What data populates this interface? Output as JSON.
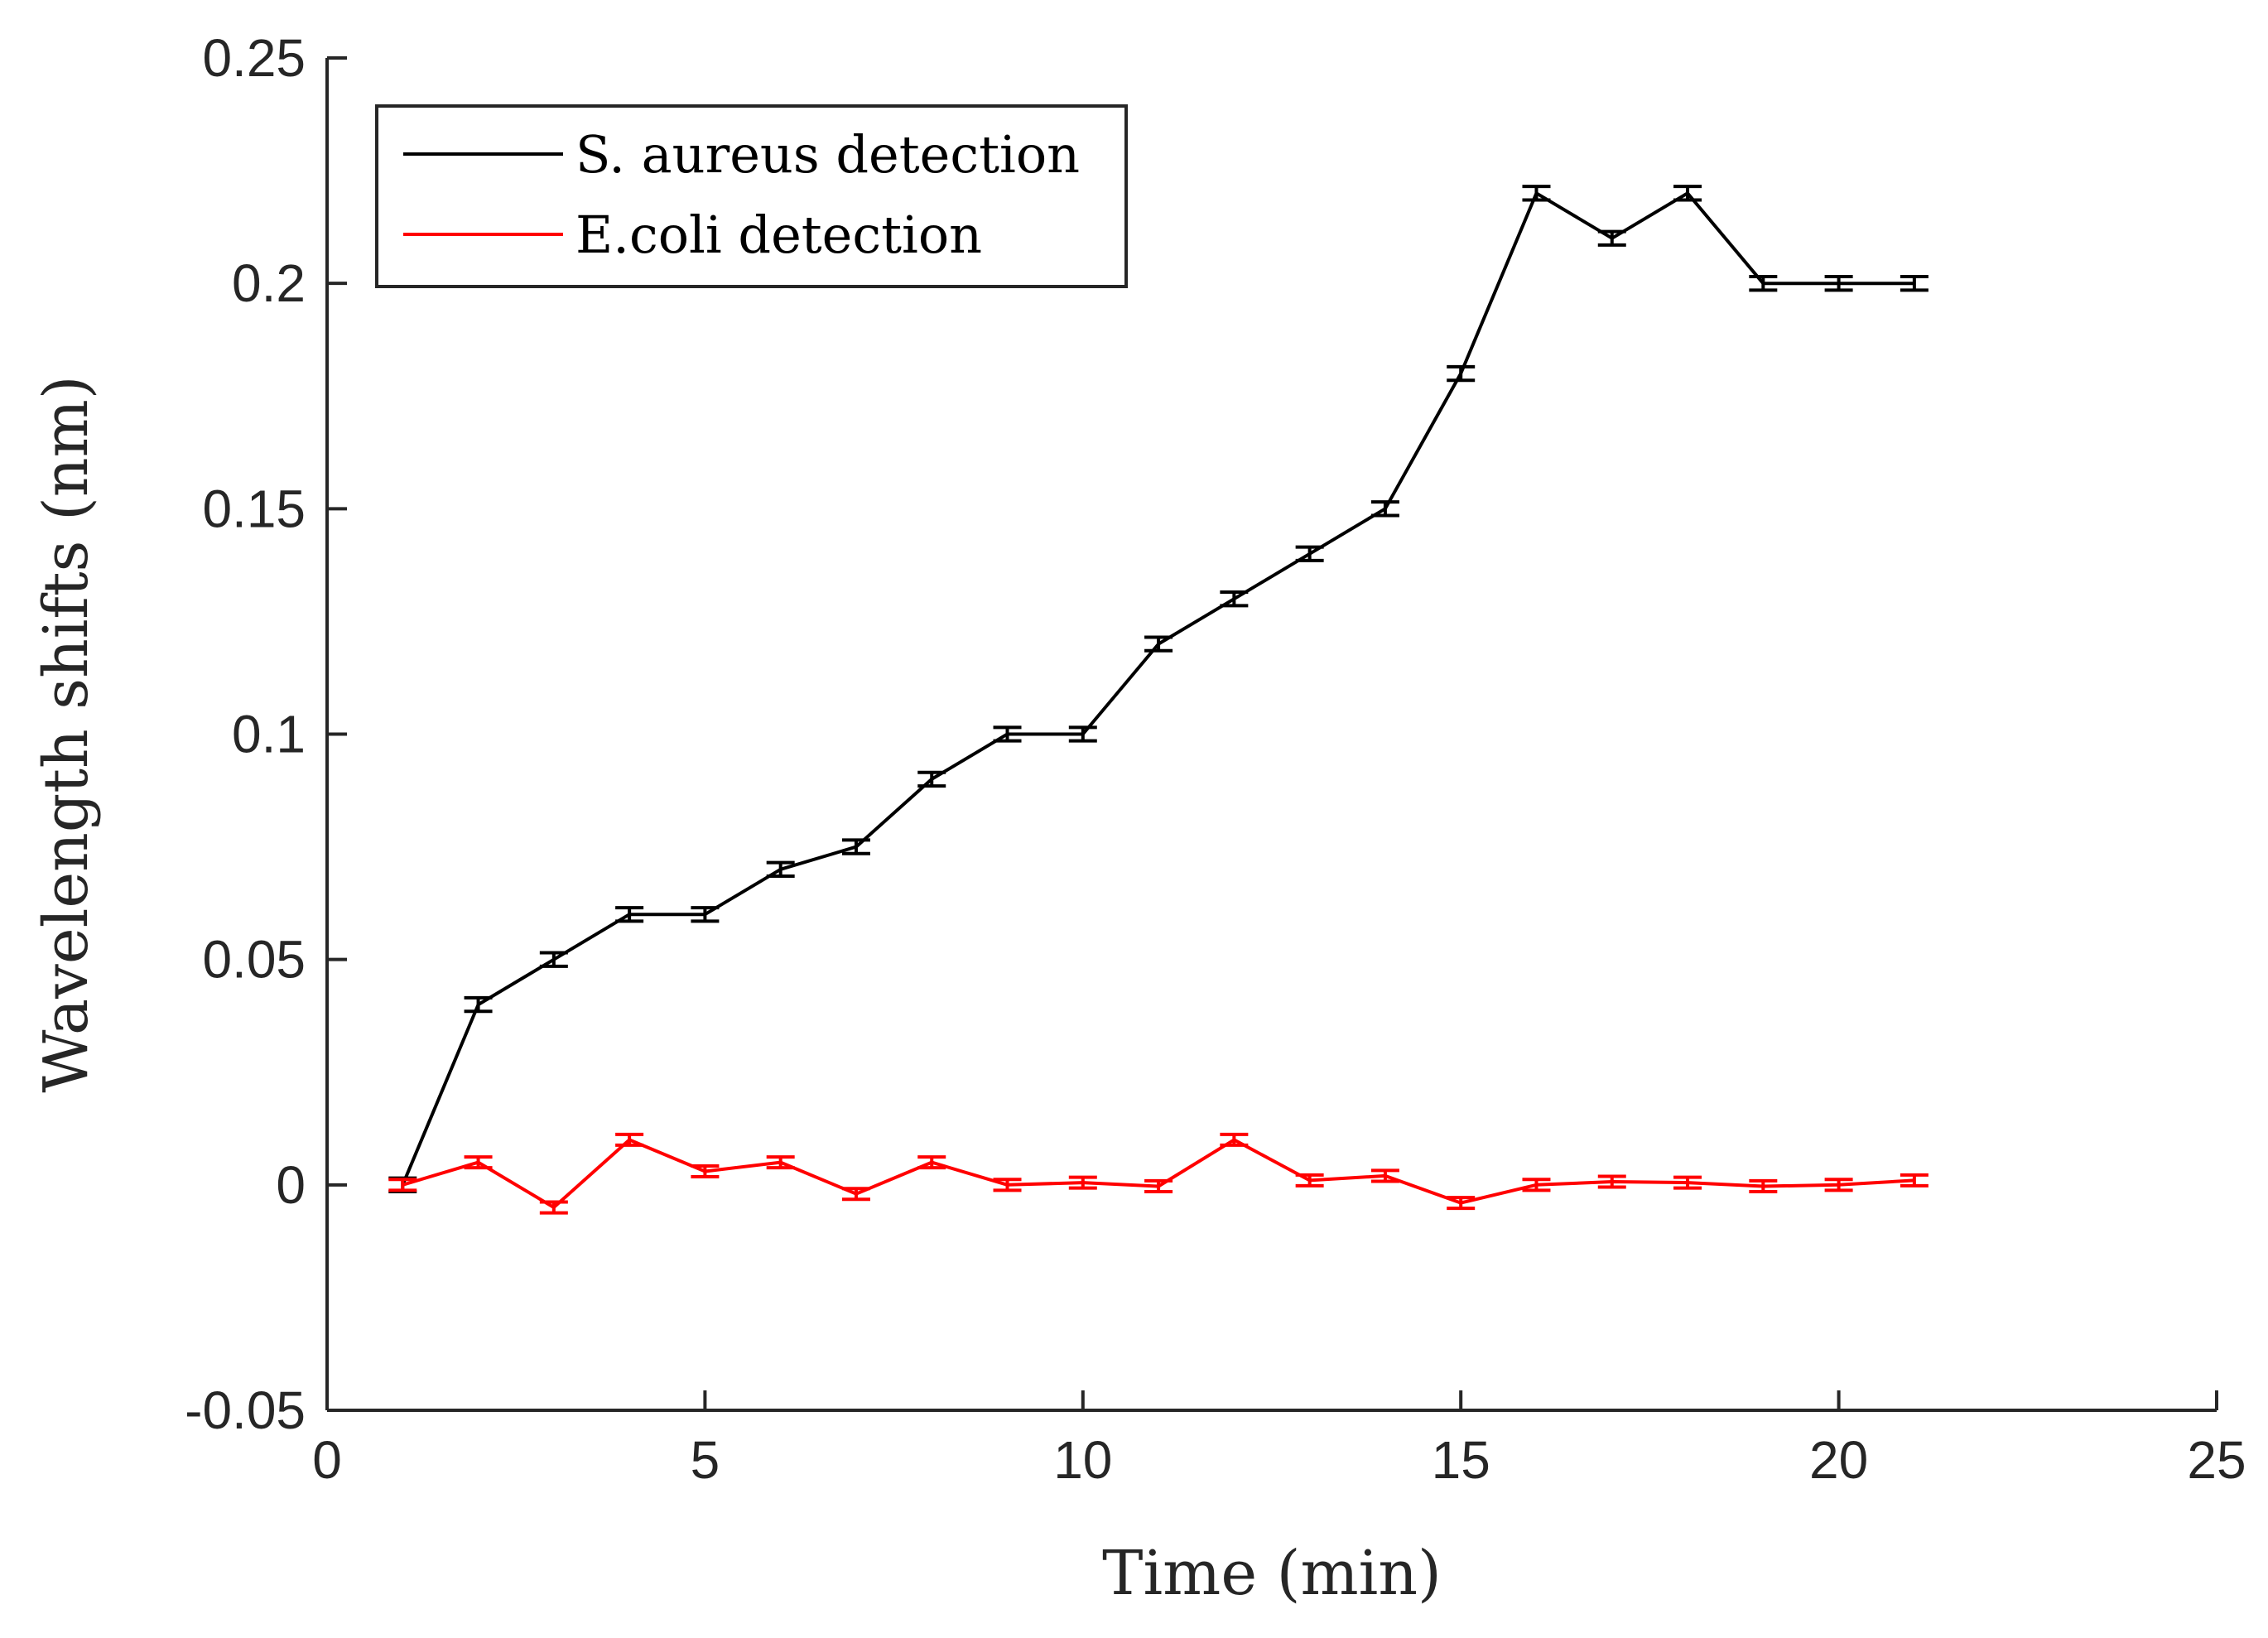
{
  "chart_data": {
    "type": "line",
    "title": "",
    "xlabel": "Time (min)",
    "ylabel": "Wavelength shifts (nm)",
    "xlim": [
      0,
      25
    ],
    "ylim": [
      -0.05,
      0.25
    ],
    "grid": false,
    "legend_position": "top-left",
    "x_ticks": [
      0,
      5,
      10,
      15,
      20,
      25
    ],
    "x_tick_labels": [
      "0",
      "5",
      "10",
      "15",
      "20",
      "25"
    ],
    "y_ticks": [
      -0.05,
      0,
      0.05,
      0.1,
      0.15,
      0.2,
      0.25
    ],
    "y_tick_labels": [
      "-0.05",
      "0",
      "0.05",
      "0.1",
      "0.15",
      "0.2",
      "0.25"
    ],
    "x": [
      1,
      2,
      3,
      4,
      5,
      6,
      7,
      8,
      9,
      10,
      11,
      12,
      13,
      14,
      15,
      16,
      17,
      18,
      19,
      20,
      21
    ],
    "series": [
      {
        "name": "S. aureus detection",
        "color": "#000000",
        "values": [
          0,
          0.04,
          0.05,
          0.06,
          0.06,
          0.07,
          0.075,
          0.09,
          0.1,
          0.1,
          0.12,
          0.13,
          0.14,
          0.15,
          0.18,
          0.22,
          0.21,
          0.22,
          0.2,
          0.2,
          0.2
        ],
        "error": 0.0015
      },
      {
        "name": "E.coli detection",
        "color": "#ff0000",
        "values": [
          0,
          0.005,
          -0.005,
          0.01,
          0.003,
          0.005,
          -0.002,
          0.005,
          0,
          0.0005,
          -0.0003,
          0.01,
          0.001,
          0.002,
          -0.004,
          0,
          0.0007,
          0.0005,
          -0.0003,
          0,
          0.001
        ],
        "error": 0.0012
      }
    ]
  }
}
